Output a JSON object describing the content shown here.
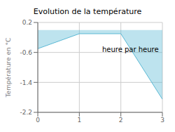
{
  "chart_data": {
    "type": "area",
    "title": "Evolution de la température",
    "ylabel": "Température en °C",
    "x": [
      0,
      1,
      2,
      3
    ],
    "values": [
      -0.5,
      -0.1,
      -0.1,
      -1.85
    ],
    "color": "#5ab8d4",
    "xlim": [
      0,
      3
    ],
    "ylim": [
      -2.2,
      0.2
    ],
    "xticks": [
      0,
      1,
      2,
      3
    ],
    "yticks": [
      0.2,
      -0.6,
      -1.4,
      -2.2
    ],
    "grid": true,
    "annotations": [
      {
        "text": "heure par heure",
        "x": 1.55,
        "y": -0.45
      }
    ]
  }
}
